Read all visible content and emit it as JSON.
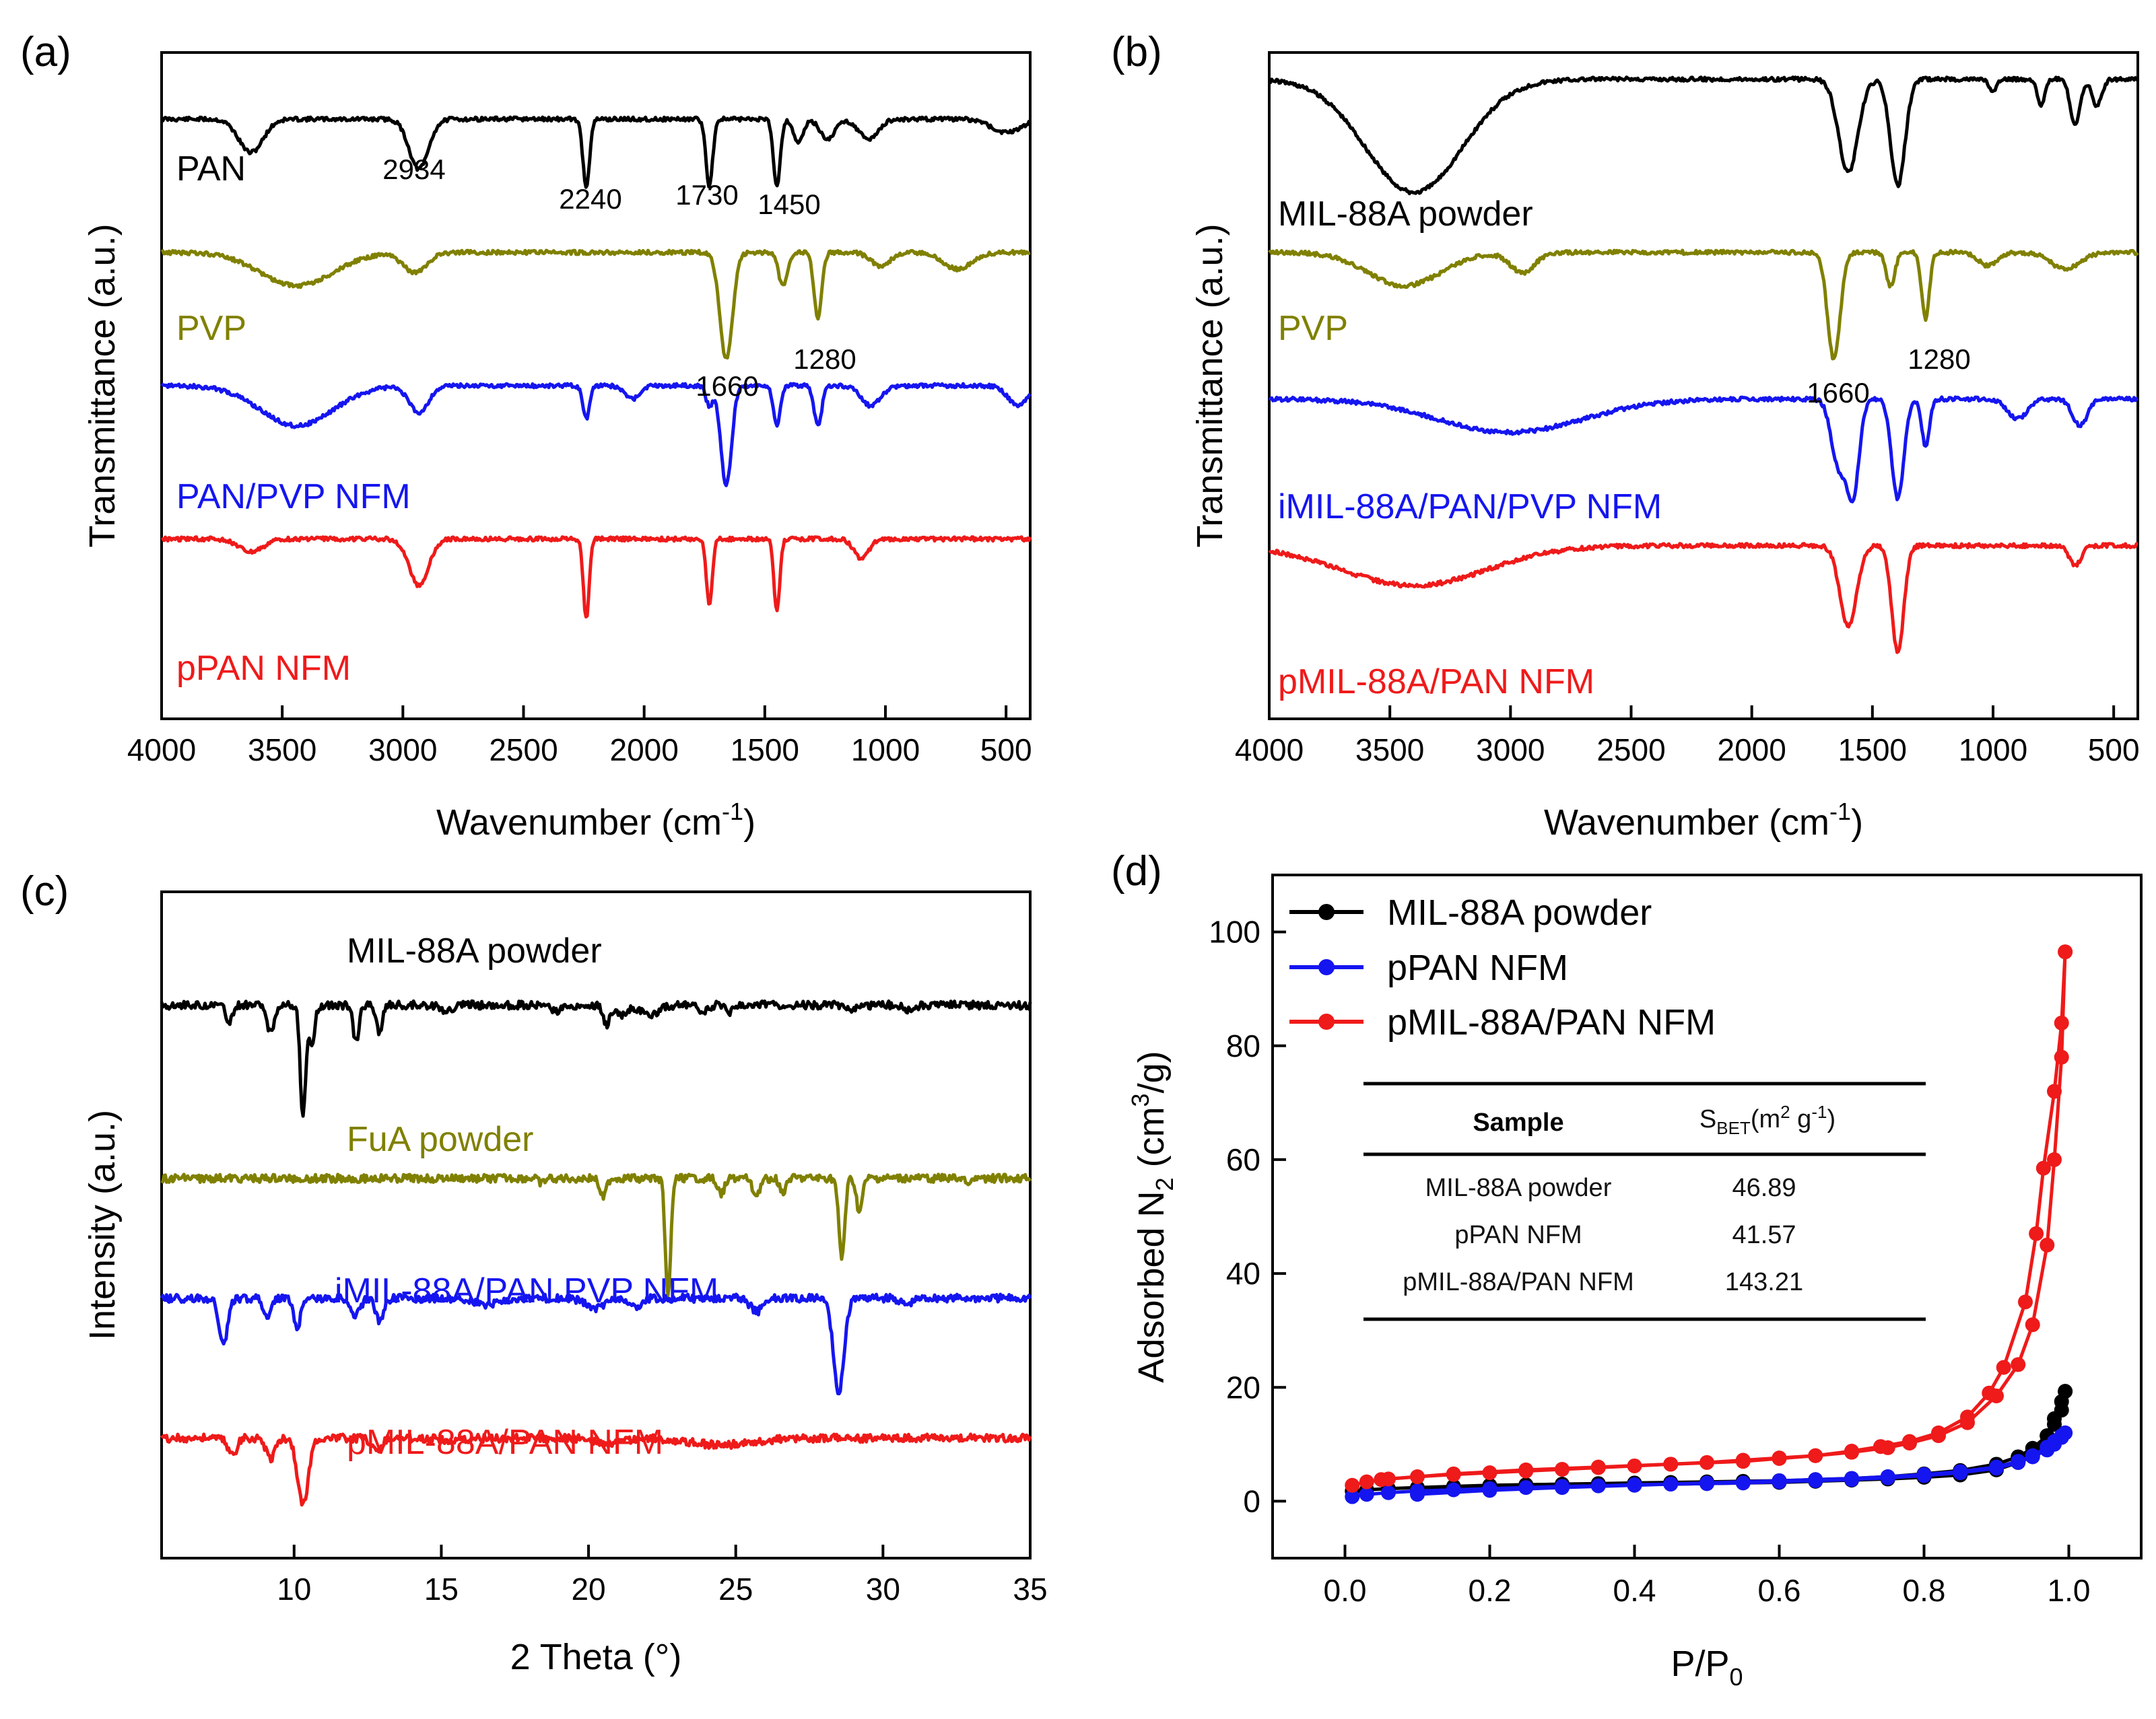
{
  "colors": {
    "black": "#000000",
    "olive": "#808000",
    "blue": "#1515f0",
    "red": "#ef1a1a"
  },
  "chart_data": [
    {
      "panel": "(a)",
      "type": "line",
      "xlabel": "Wavenumber (cm",
      "xlabel_sup": "-1",
      "xlabel_close": ")",
      "ylabel": "Transmittance (a.u.)",
      "xlim": [
        4000,
        400
      ],
      "xticks": [
        4000,
        3500,
        3000,
        2500,
        2000,
        1500,
        1000,
        500
      ],
      "series": [
        {
          "name": "PAN",
          "color": "#000000",
          "baseline": 0.1,
          "peaks": [
            [
              3630,
              0.05,
              50
            ],
            [
              2934,
              0.075,
              40
            ],
            [
              2240,
              0.1,
              14
            ],
            [
              1730,
              0.1,
              14
            ],
            [
              1450,
              0.1,
              14
            ],
            [
              1360,
              0.035,
              20
            ],
            [
              1240,
              0.03,
              30
            ],
            [
              1070,
              0.03,
              40
            ],
            [
              500,
              0.02,
              60
            ]
          ]
        },
        {
          "name": "PVP",
          "color": "#808000",
          "baseline": 0.3,
          "peaks": [
            [
              3440,
              0.05,
              150
            ],
            [
              2950,
              0.03,
              50
            ],
            [
              1660,
              0.16,
              26
            ],
            [
              1425,
              0.05,
              18
            ],
            [
              1280,
              0.1,
              16
            ],
            [
              1020,
              0.02,
              40
            ],
            [
              700,
              0.025,
              60
            ]
          ]
        },
        {
          "name": "PAN/PVP NFM",
          "color": "#1515f0",
          "baseline": 0.5,
          "peaks": [
            [
              3440,
              0.06,
              150
            ],
            [
              2934,
              0.04,
              40
            ],
            [
              2240,
              0.05,
              14
            ],
            [
              2050,
              0.02,
              30
            ],
            [
              1730,
              0.03,
              14
            ],
            [
              1660,
              0.15,
              22
            ],
            [
              1450,
              0.06,
              14
            ],
            [
              1280,
              0.06,
              16
            ],
            [
              1060,
              0.03,
              40
            ],
            [
              450,
              0.03,
              40
            ]
          ]
        },
        {
          "name": "pPAN NFM",
          "color": "#ef1a1a",
          "baseline": 0.73,
          "peaks": [
            [
              3630,
              0.02,
              50
            ],
            [
              2934,
              0.07,
              40
            ],
            [
              2240,
              0.12,
              12
            ],
            [
              1730,
              0.1,
              12
            ],
            [
              1450,
              0.11,
              12
            ],
            [
              1100,
              0.03,
              30
            ]
          ]
        }
      ],
      "labels": [
        "PAN",
        "PVP",
        "PAN/PVP NFM",
        "pPAN NFM"
      ],
      "annotations": [
        "2934",
        "2240",
        "1730",
        "1450",
        "1660",
        "1280"
      ]
    },
    {
      "panel": "(b)",
      "type": "line",
      "xlabel": "Wavenumber (cm",
      "xlabel_sup": "-1",
      "xlabel_close": ")",
      "ylabel": "Transmittance (a.u.)",
      "xlim": [
        4000,
        400
      ],
      "xticks": [
        4000,
        3500,
        3000,
        2500,
        2000,
        1500,
        1000,
        500
      ],
      "series": [
        {
          "name": "MIL-88A powder",
          "color": "#000000",
          "baseline": 0.04,
          "peaks": [
            [
              3400,
              0.17,
              200
            ],
            [
              1600,
              0.14,
              40
            ],
            [
              1395,
              0.16,
              30
            ],
            [
              1000,
              0.02,
              15
            ],
            [
              800,
              0.04,
              15
            ],
            [
              660,
              0.07,
              20
            ],
            [
              570,
              0.04,
              20
            ]
          ]
        },
        {
          "name": "PVP",
          "color": "#808000",
          "baseline": 0.3,
          "peaks": [
            [
              3440,
              0.05,
              150
            ],
            [
              2950,
              0.03,
              50
            ],
            [
              1660,
              0.16,
              26
            ],
            [
              1425,
              0.05,
              18
            ],
            [
              1280,
              0.1,
              16
            ],
            [
              1020,
              0.02,
              40
            ],
            [
              700,
              0.025,
              60
            ]
          ]
        },
        {
          "name": "iMIL-88A/PAN/PVP NFM",
          "color": "#1515f0",
          "baseline": 0.52,
          "peaks": [
            [
              3000,
              0.05,
              300
            ],
            [
              1640,
              0.1,
              30
            ],
            [
              1580,
              0.14,
              25
            ],
            [
              1395,
              0.15,
              25
            ],
            [
              1280,
              0.07,
              16
            ],
            [
              900,
              0.03,
              40
            ],
            [
              640,
              0.04,
              30
            ]
          ]
        },
        {
          "name": "pMIL-88A/PAN NFM",
          "color": "#ef1a1a",
          "baseline": 0.74,
          "peaks": [
            [
              3400,
              0.06,
              300
            ],
            [
              1600,
              0.12,
              35
            ],
            [
              1395,
              0.16,
              25
            ],
            [
              660,
              0.03,
              25
            ]
          ]
        }
      ],
      "labels": [
        "MIL-88A powder",
        "PVP",
        "iMIL-88A/PAN/PVP NFM",
        "pMIL-88A/PAN NFM"
      ],
      "annotations": [
        "1660",
        "1280"
      ]
    },
    {
      "panel": "(c)",
      "type": "line",
      "xlabel": "2 Theta (°)",
      "ylabel": "Intensity (a.u.)",
      "xlim": [
        5.5,
        35
      ],
      "xticks": [
        10,
        15,
        20,
        25,
        30,
        35
      ],
      "series": [
        {
          "name": "MIL-88A powder",
          "color": "#000000",
          "baseline": 0.17,
          "peaks": [
            [
              7.8,
              0.025,
              0.12
            ],
            [
              9.2,
              0.04,
              0.12
            ],
            [
              10.3,
              0.17,
              0.09
            ],
            [
              10.6,
              0.06,
              0.1
            ],
            [
              12.1,
              0.055,
              0.1
            ],
            [
              12.9,
              0.04,
              0.1
            ],
            [
              15.2,
              0.01,
              0.2
            ],
            [
              18.9,
              0.01,
              0.2
            ],
            [
              20.6,
              0.03,
              0.1
            ],
            [
              21.1,
              0.015,
              0.2
            ],
            [
              22.1,
              0.015,
              0.3
            ],
            [
              23.9,
              0.012,
              0.15
            ],
            [
              24.8,
              0.01,
              0.15
            ],
            [
              28.9,
              0.008,
              0.2
            ],
            [
              30.9,
              0.008,
              0.2
            ]
          ]
        },
        {
          "name": "FuA powder",
          "color": "#808000",
          "baseline": 0.43,
          "peaks": [
            [
              18.4,
              0.008,
              0.1
            ],
            [
              20.5,
              0.03,
              0.1
            ],
            [
              22.7,
              0.18,
              0.09
            ],
            [
              24.5,
              0.025,
              0.1
            ],
            [
              25.7,
              0.025,
              0.12
            ],
            [
              26.6,
              0.02,
              0.1
            ],
            [
              28.6,
              0.12,
              0.1
            ],
            [
              29.2,
              0.05,
              0.1
            ],
            [
              33,
              0.006,
              0.1
            ]
          ]
        },
        {
          "name": "iMIL-88A/PAN PVP NFM",
          "color": "#1515f0",
          "baseline": 0.61,
          "peaks": [
            [
              7.6,
              0.07,
              0.14
            ],
            [
              9.1,
              0.025,
              0.14
            ],
            [
              10.1,
              0.045,
              0.12
            ],
            [
              12.1,
              0.025,
              0.15
            ],
            [
              12.9,
              0.035,
              0.14
            ],
            [
              16.5,
              0.01,
              0.4
            ],
            [
              20.2,
              0.015,
              0.3
            ],
            [
              21.6,
              0.015,
              0.2
            ],
            [
              25.7,
              0.02,
              0.2
            ],
            [
              28.5,
              0.14,
              0.18
            ],
            [
              30.8,
              0.01,
              0.2
            ]
          ]
        },
        {
          "name": "pMIL-88A/PAN NFM",
          "color": "#ef1a1a",
          "baseline": 0.82,
          "peaks": [
            [
              7.9,
              0.025,
              0.15
            ],
            [
              9.2,
              0.03,
              0.15
            ],
            [
              10.3,
              0.1,
              0.18
            ],
            [
              12.8,
              0.02,
              0.15
            ],
            [
              15.5,
              0.005,
              0.3
            ],
            [
              20.7,
              0.008,
              0.4
            ],
            [
              24.5,
              0.01,
              1.0
            ]
          ]
        }
      ],
      "labels": [
        "MIL-88A powder",
        "FuA powder",
        "iMIL-88A/PAN PVP NFM",
        "pMIL-88A/PAN NFM"
      ]
    },
    {
      "panel": "(d)",
      "type": "scatter",
      "xlabel": "P/P",
      "xlabel_sub": "0",
      "ylabel": "Adsorbed N",
      "ylabel_sub": "2",
      "ylabel_unit": " (cm",
      "ylabel_sup": "3",
      "ylabel_close": "/g)",
      "xlim": [
        -0.1,
        1.1
      ],
      "ylim": [
        -10,
        110
      ],
      "xticks": [
        0.0,
        0.2,
        0.4,
        0.6,
        0.8,
        1.0
      ],
      "xtick_labels": [
        "0.0",
        "0.2",
        "0.4",
        "0.6",
        "0.8",
        "1.0"
      ],
      "yticks": [
        0,
        20,
        40,
        60,
        80,
        100
      ],
      "series": [
        {
          "name": "MIL-88A powder",
          "color": "#000000",
          "x": [
            0.01,
            0.03,
            0.06,
            0.1,
            0.15,
            0.2,
            0.25,
            0.3,
            0.35,
            0.4,
            0.45,
            0.5,
            0.55,
            0.6,
            0.65,
            0.7,
            0.75,
            0.8,
            0.85,
            0.9,
            0.93,
            0.95,
            0.97,
            0.98,
            0.99,
            0.995
          ],
          "adsorption": [
            1.8,
            2.0,
            2.2,
            2.4,
            2.6,
            2.8,
            2.9,
            3.0,
            3.1,
            3.2,
            3.3,
            3.4,
            3.5,
            3.6,
            3.8,
            4.0,
            4.3,
            4.8,
            5.4,
            6.5,
            7.8,
            9.3,
            11.5,
            13.5,
            16.0,
            19.3
          ],
          "desorption": [
            2.1,
            2.4,
            2.6,
            2.9,
            3.1,
            3.3,
            3.5,
            3.7,
            3.9,
            4.2,
            4.6,
            5.5,
            6.8,
            8.5,
            11.5,
            14.5,
            17.5,
            19.3
          ],
          "desorption_x": [
            0.1,
            0.2,
            0.3,
            0.4,
            0.5,
            0.6,
            0.65,
            0.7,
            0.75,
            0.8,
            0.85,
            0.9,
            0.93,
            0.95,
            0.97,
            0.98,
            0.99,
            0.995
          ]
        },
        {
          "name": "pPAN NFM",
          "color": "#1515f0",
          "x": [
            0.01,
            0.03,
            0.06,
            0.1,
            0.15,
            0.2,
            0.25,
            0.3,
            0.35,
            0.4,
            0.45,
            0.5,
            0.55,
            0.6,
            0.65,
            0.7,
            0.75,
            0.8,
            0.85,
            0.9,
            0.93,
            0.95,
            0.97,
            0.98,
            0.99,
            0.995
          ],
          "adsorption": [
            0.8,
            1.2,
            1.5,
            1.8,
            2.0,
            2.2,
            2.4,
            2.6,
            2.7,
            2.9,
            3.0,
            3.1,
            3.2,
            3.4,
            3.6,
            3.8,
            4.1,
            4.5,
            5.0,
            5.8,
            6.8,
            7.8,
            9.0,
            10.0,
            11.2,
            12.0
          ],
          "desorption": [
            1.2,
            1.9,
            2.4,
            2.8,
            3.2,
            3.6,
            3.8,
            4.0,
            4.3,
            4.7,
            5.2,
            6.0,
            7.0,
            8.0,
            9.5,
            10.5,
            11.5,
            12.0
          ],
          "desorption_x": [
            0.1,
            0.2,
            0.3,
            0.4,
            0.5,
            0.6,
            0.65,
            0.7,
            0.75,
            0.8,
            0.85,
            0.9,
            0.93,
            0.95,
            0.97,
            0.98,
            0.99,
            0.995
          ]
        },
        {
          "name": "pMIL-88A/PAN NFM",
          "color": "#ef1a1a",
          "x": [
            0.01,
            0.03,
            0.06,
            0.1,
            0.15,
            0.2,
            0.25,
            0.3,
            0.35,
            0.4,
            0.45,
            0.5,
            0.55,
            0.6,
            0.65,
            0.7,
            0.75,
            0.78,
            0.82,
            0.86,
            0.9,
            0.93,
            0.95,
            0.97,
            0.98,
            0.99,
            0.995
          ],
          "adsorption": [
            2.8,
            3.4,
            3.9,
            4.3,
            4.7,
            5.0,
            5.3,
            5.6,
            5.9,
            6.2,
            6.5,
            6.8,
            7.2,
            7.6,
            8.0,
            8.6,
            9.4,
            10.2,
            11.5,
            13.8,
            18.5,
            24.0,
            31.0,
            45.0,
            60.0,
            78.0,
            96.5
          ],
          "desorption": [
            3.8,
            4.8,
            5.5,
            6.0,
            6.5,
            7.0,
            7.5,
            8.0,
            8.8,
            9.6,
            10.5,
            12.0,
            14.8,
            19.0,
            23.5,
            35.0,
            47.0,
            58.5,
            72.0,
            84.0,
            96.5
          ],
          "desorption_x": [
            0.05,
            0.15,
            0.25,
            0.35,
            0.45,
            0.55,
            0.6,
            0.65,
            0.7,
            0.74,
            0.78,
            0.82,
            0.86,
            0.89,
            0.91,
            0.94,
            0.955,
            0.965,
            0.98,
            0.99,
            0.995
          ]
        }
      ],
      "legend": [
        "MIL-88A powder",
        "pPAN NFM",
        "pMIL-88A/PAN NFM"
      ],
      "table": {
        "header_sample": "Sample",
        "header_sbet": "S",
        "header_sbet_sub": "BET",
        "header_sbet_unit": "(m",
        "header_sbet_sup1": "2",
        "header_sbet_g": " g",
        "header_sbet_sup2": "-1",
        "header_sbet_close": ")",
        "rows": [
          {
            "sample": "MIL-88A powder",
            "value": "46.89"
          },
          {
            "sample": "pPAN NFM",
            "value": "41.57"
          },
          {
            "sample": "pMIL-88A/PAN NFM",
            "value": "143.21"
          }
        ]
      }
    }
  ]
}
